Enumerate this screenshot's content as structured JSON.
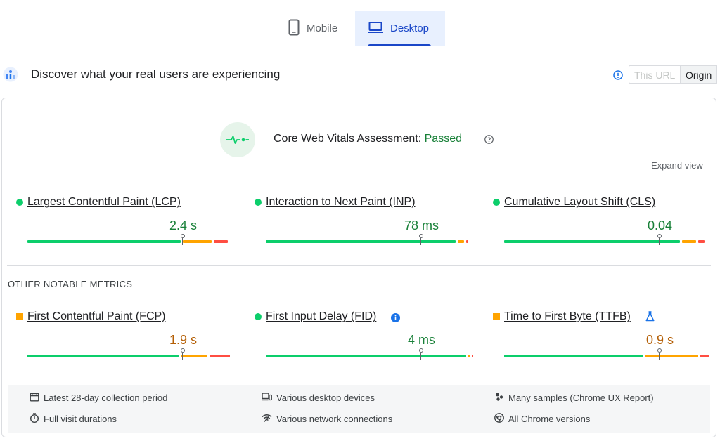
{
  "tabs": [
    {
      "label": "Mobile",
      "icon": "smartphone-icon",
      "selected": false
    },
    {
      "label": "Desktop",
      "icon": "laptop-icon",
      "selected": true
    }
  ],
  "header": {
    "title": "Discover what your real users are experiencing",
    "toggle": {
      "this_url": "This URL",
      "origin": "Origin",
      "selected": "Origin"
    }
  },
  "assessment": {
    "label": "Core Web Vitals Assessment:",
    "status": "Passed",
    "expand": "Expand view"
  },
  "core_metrics": [
    {
      "name": "Largest Contentful Paint (LCP)",
      "value": "2.4 s",
      "rating": "good",
      "distribution": {
        "good": 0.75,
        "needs_improvement": 0.15,
        "poor": 0.08
      }
    },
    {
      "name": "Interaction to Next Paint (INP)",
      "value": "78 ms",
      "rating": "good",
      "distribution": {
        "good": 0.93,
        "needs_improvement": 0.04,
        "poor": 0.02
      }
    },
    {
      "name": "Cumulative Layout Shift (CLS)",
      "value": "0.04",
      "rating": "good",
      "distribution": {
        "good": 0.86,
        "needs_improvement": 0.08,
        "poor": 0.04
      }
    }
  ],
  "other_label": "OTHER NOTABLE METRICS",
  "other_metrics": [
    {
      "name": "First Contentful Paint (FCP)",
      "value": "1.9 s",
      "rating": "needs-improvement",
      "distribution": {
        "good": 0.74,
        "needs_improvement": 0.14,
        "poor": 0.11
      }
    },
    {
      "name": "First Input Delay (FID)",
      "value": "4 ms",
      "rating": "good",
      "extra_icon": "info-icon",
      "distribution": {
        "good": 0.98,
        "needs_improvement": 0.01,
        "poor": 0.01
      }
    },
    {
      "name": "Time to First Byte (TTFB)",
      "value": "0.9 s",
      "rating": "needs-improvement",
      "extra_icon": "experimental-flask-icon",
      "distribution": {
        "good": 0.68,
        "needs_improvement": 0.27,
        "poor": 0.05
      }
    }
  ],
  "footer": {
    "items": [
      {
        "icon": "calendar-icon",
        "text": "Latest 28-day collection period"
      },
      {
        "icon": "stopwatch-icon",
        "text": "Full visit durations"
      },
      {
        "icon": "devices-icon",
        "text": "Various desktop devices"
      },
      {
        "icon": "wifi-icon",
        "text": "Various network connections"
      },
      {
        "icon": "people-icon",
        "text_before": "Many samples (",
        "link": "Chrome UX Report",
        "text_after": ")"
      },
      {
        "icon": "chrome-icon",
        "text": "All Chrome versions"
      }
    ]
  },
  "colors": {
    "good": "#0cce6b",
    "needs_improvement": "#ffa400",
    "poor": "#ff4e42",
    "good_text": "#188038",
    "avg_text": "#b45f06",
    "accent": "#1a47c8"
  }
}
